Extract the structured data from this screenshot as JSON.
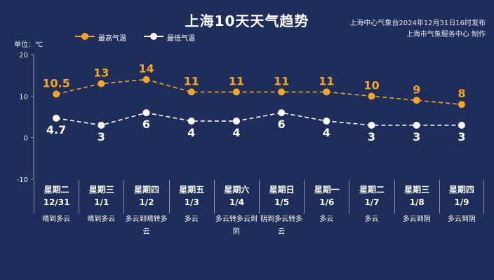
{
  "title": "上海10天天气趋势",
  "source": {
    "line1": "上海中心气象台2024年12月31日16时发布",
    "line2": "上海市气象服务中心 制作"
  },
  "unit_label": "单位：℃",
  "colors": {
    "background": "#1f2d5a",
    "high": "#f5a623",
    "low": "#ffffff",
    "axis": "#8a96b8"
  },
  "chart_data": {
    "type": "line",
    "ylim": [
      -10,
      20
    ],
    "yticks": [
      "20",
      "10",
      "0",
      "-10"
    ],
    "series": [
      {
        "name": "最高气温",
        "values": [
          10.5,
          13,
          14,
          11,
          11,
          11,
          11,
          10,
          9,
          8
        ],
        "labels": [
          "10.5",
          "13",
          "14",
          "11",
          "11",
          "11",
          "11",
          "10",
          "9",
          "8"
        ]
      },
      {
        "name": "最低气温",
        "values": [
          4.7,
          3,
          6,
          4,
          4,
          6,
          4,
          3,
          3,
          3
        ],
        "labels": [
          "4.7",
          "3",
          "6",
          "4",
          "4",
          "6",
          "4",
          "3",
          "3",
          "3"
        ]
      }
    ]
  },
  "days": [
    {
      "weekday": "星期二",
      "date": "12/31",
      "weather": "晴到多云"
    },
    {
      "weekday": "星期三",
      "date": "1/1",
      "weather": "晴到多云"
    },
    {
      "weekday": "星期四",
      "date": "1/2",
      "weather": "多云到晴转多云"
    },
    {
      "weekday": "星期五",
      "date": "1/3",
      "weather": "多云"
    },
    {
      "weekday": "星期六",
      "date": "1/4",
      "weather": "多云转多云到阴"
    },
    {
      "weekday": "星期日",
      "date": "1/5",
      "weather": "阴到多云转多云"
    },
    {
      "weekday": "星期一",
      "date": "1/6",
      "weather": "多云"
    },
    {
      "weekday": "星期二",
      "date": "1/7",
      "weather": "多云"
    },
    {
      "weekday": "星期三",
      "date": "1/8",
      "weather": "多云到阴"
    },
    {
      "weekday": "星期四",
      "date": "1/9",
      "weather": "多云到阴"
    }
  ]
}
